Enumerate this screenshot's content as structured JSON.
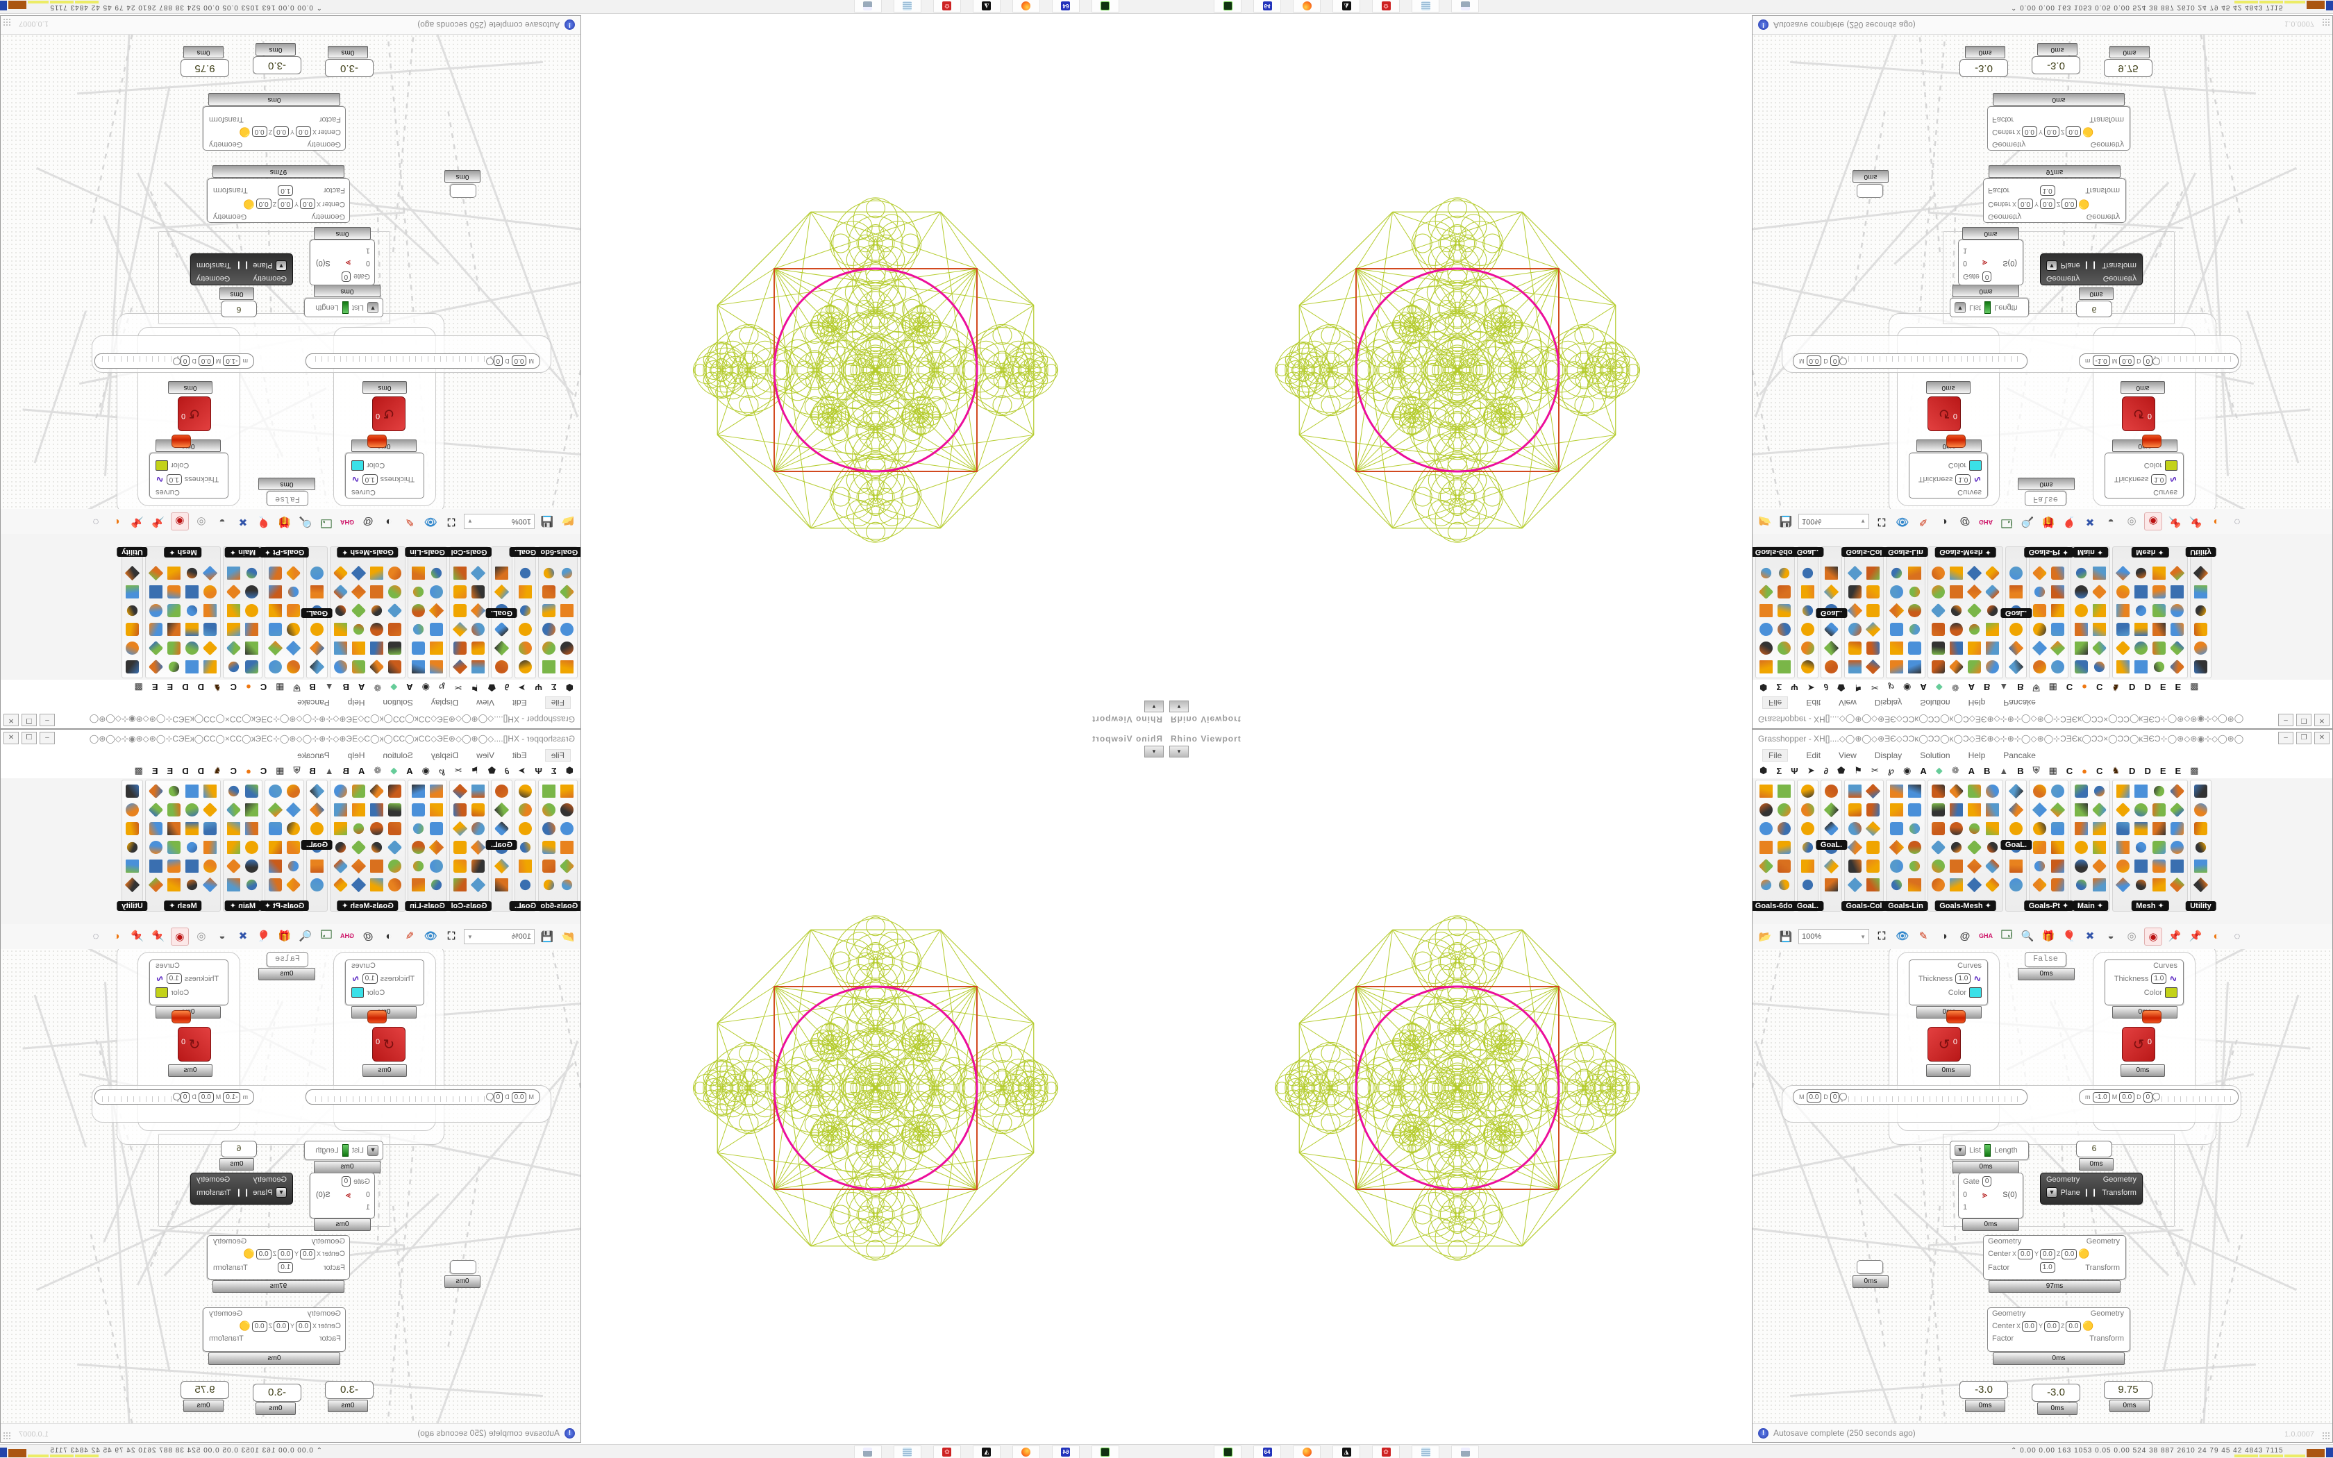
{
  "viewport": {
    "label": "Rhino Viewport",
    "drop_glyph": "▾"
  },
  "gh": {
    "title": "Grasshopper - XH[]....◇◯⊕◯◇⊛ƎЄ◇ƆƆĸ◯ƆƆ◯ĸ◯Ɔ◇ƎЄ⊕◇⊹⊕⊹◯◇⊛◯⊹ƆƎЄĸ◯ƆƆ×◯ƆƆ◯ĸƎЄƆ⊹◯⊛◇⊛◉⊹◇◯⊛◯⊹ƆƎЄ◯Ɔ...",
    "window_buttons": [
      "–",
      "❐",
      "✕"
    ],
    "menu": [
      "File",
      "Edit",
      "View",
      "Display",
      "Solution",
      "Help",
      "Pancake"
    ],
    "tabs": [
      {
        "g": "⬢",
        "c": "#222"
      },
      {
        "g": "Σ",
        "c": "#222"
      },
      {
        "g": "Ψ",
        "c": "#222"
      },
      {
        "g": "➤",
        "c": "#222"
      },
      {
        "g": "∂",
        "c": "#222"
      },
      {
        "g": "⬟",
        "c": "#222"
      },
      {
        "g": "⚑",
        "c": "#222"
      },
      {
        "g": "✂",
        "c": "#222"
      },
      {
        "g": "℘",
        "c": "#222"
      },
      {
        "g": "◉",
        "c": "#222"
      },
      {
        "g": "A",
        "c": "#111"
      },
      {
        "g": "◆",
        "c": "#66cc99"
      },
      {
        "g": "❁",
        "c": "#555"
      },
      {
        "g": "A",
        "c": "#111"
      },
      {
        "g": "B",
        "c": "#111"
      },
      {
        "g": "▲",
        "c": "#555"
      },
      {
        "g": "B",
        "c": "#111"
      },
      {
        "g": "⛨",
        "c": "#555"
      },
      {
        "g": "▦",
        "c": "#333"
      },
      {
        "g": "C",
        "c": "#111"
      },
      {
        "g": "●",
        "c": "#ee7711"
      },
      {
        "g": "C",
        "c": "#111"
      },
      {
        "g": "♞",
        "c": "#442200"
      },
      {
        "g": "D",
        "c": "#111"
      },
      {
        "g": "D",
        "c": "#111"
      },
      {
        "g": "E",
        "c": "#111"
      },
      {
        "g": "E",
        "c": "#111"
      },
      {
        "g": "▩",
        "c": "#333"
      }
    ],
    "ribbon_panels": [
      {
        "label": "Goals-6dof",
        "cols": 2,
        "arrow": false
      },
      {
        "label": "GoaL.",
        "cols": 1,
        "arrow": false
      },
      {
        "label": "",
        "cols": 1,
        "arrow": false,
        "float_label": "GoaL."
      },
      {
        "label": "Goals-Col",
        "cols": 2,
        "arrow": false
      },
      {
        "label": "Goals-Lin",
        "cols": 2,
        "arrow": false
      },
      {
        "label": "Goals-Mesh",
        "cols": 4,
        "arrow": true
      },
      {
        "label": "",
        "cols": 1,
        "arrow": false,
        "float_label": "GoaL."
      },
      {
        "label": "Goals-Pt",
        "cols": 2,
        "arrow": true
      },
      {
        "label": "Main",
        "cols": 2,
        "arrow": true
      },
      {
        "label": "Mesh",
        "cols": 4,
        "arrow": true
      },
      {
        "label": "Utility",
        "cols": 1,
        "arrow": false
      }
    ],
    "toolbar": {
      "zoom": "100%",
      "icons_left": [
        {
          "name": "open-file-icon",
          "g": "📂",
          "c": "#55aa33"
        },
        {
          "name": "save-file-icon",
          "g": "💾",
          "c": "#3355cc"
        }
      ],
      "icons_mid": [
        {
          "name": "frame-icon",
          "g": "⛶",
          "c": "#222"
        },
        {
          "name": "preview-eye-icon",
          "g": "👁",
          "c": "#3388cc"
        },
        {
          "name": "sketch-pen-icon",
          "g": "✎",
          "c": "#cc3311"
        },
        {
          "name": "gumball-icon",
          "g": "◑",
          "c": "#333"
        },
        {
          "name": "at-icon",
          "g": "@",
          "c": "#444"
        },
        {
          "name": "gha-icon",
          "g": "GHA",
          "c": "#cc1166"
        },
        {
          "name": "doc-icon",
          "g": "🗔",
          "c": "#447744"
        },
        {
          "name": "find-icon",
          "g": "🔍",
          "c": "#3366aa"
        },
        {
          "name": "box-question-icon",
          "g": "🎁",
          "c": "#ee5599"
        },
        {
          "name": "balloon-icon",
          "g": "🎈",
          "c": "#8877ee"
        },
        {
          "name": "ribbons-icon",
          "g": "✖",
          "c": "#3355aa"
        },
        {
          "name": "wire-dark-icon",
          "g": "◒",
          "c": "#555"
        },
        {
          "name": "wire-ghost-icon",
          "g": "◎",
          "c": "#999"
        }
      ],
      "icon_selected": {
        "name": "wire-red-icon",
        "g": "◉",
        "c": "#bb1111"
      },
      "icons_right": [
        {
          "name": "pin-teal-icon",
          "g": "📌",
          "c": "#119988"
        },
        {
          "name": "pin-green-icon",
          "g": "📌",
          "c": "#44aa22"
        },
        {
          "name": "sphere-orange-icon",
          "g": "◐",
          "c": "#ee7711"
        },
        {
          "name": "dashed-circle-icon",
          "g": "◌",
          "c": "#667"
        }
      ]
    },
    "nodes": {
      "preview1": {
        "r1": "Curves",
        "r2": "Thickness",
        "t": "1.0",
        "r3": "Color",
        "swatch": "#3ae0e8",
        "time": "0ms"
      },
      "preview2": {
        "r1": "Curves",
        "r2": "Thickness",
        "t": "1.0",
        "r3": "Color",
        "swatch": "#c3d219",
        "time": "0ms"
      },
      "toggle": {
        "label": "False",
        "time": "0ms"
      },
      "solver1": {
        "value": "0",
        "time": "0ms"
      },
      "solver2": {
        "value": "0",
        "time": "0ms"
      },
      "slider1": {
        "lm": "M",
        "vm": "0.0",
        "ld": "D",
        "vd": "0",
        "plus": "+1"
      },
      "slider2": {
        "ls": "m",
        "vs": "-1.0",
        "lm": "M",
        "vm": "0.0",
        "ld": "D",
        "vd": "0",
        "plus": "+1"
      },
      "listlen": {
        "in": "List",
        "out": "Length",
        "time": "0ms"
      },
      "panel6": {
        "value": "6",
        "time": "0ms"
      },
      "gate": {
        "in1": "Gate",
        "g": "0",
        "in2": "0",
        "in3": "1",
        "out": "S(0)",
        "time": "0ms"
      },
      "orient": {
        "in1": "Geometry",
        "in2": "Plane",
        "out1": "Geometry",
        "out2": "Transform"
      },
      "scale1": {
        "in1": "Geometry",
        "c": "Center",
        "x": "X",
        "xv": "0.0",
        "y": "Y",
        "yv": "0.0",
        "z": "Z",
        "zv": "0.0",
        "f": "Factor",
        "fv": "1.0",
        "out1": "Geometry",
        "out2": "Transform",
        "time": "97ms"
      },
      "scale2": {
        "in1": "Geometry",
        "c": "Center",
        "x": "X",
        "xv": "0.0",
        "y": "Y",
        "yv": "0.0",
        "z": "Z",
        "zv": "0.0",
        "f": "Factor",
        "out1": "Geometry",
        "out2": "Transform",
        "time": "0ms"
      },
      "mini": {
        "time": "0ms"
      },
      "pA": {
        "value": "-3.0",
        "time": "0ms"
      },
      "pB": {
        "value": "-3.0",
        "time": "0ms"
      },
      "pC": {
        "value": "9.75",
        "time": "0ms"
      }
    },
    "status": {
      "text": "Autosave complete (250 seconds ago)",
      "version": "1.0.0007"
    }
  },
  "geometry_colors": {
    "wire": "#b5cc2e",
    "circle": "#ec0e9b",
    "square": "#d2491f"
  },
  "taskbar": {
    "icons": [
      {
        "name": "drive-icon",
        "text": "",
        "bg": "#113311",
        "fg": "#66cc44"
      },
      {
        "name": "floppy64-icon",
        "text": "64",
        "bg": "#2233bb",
        "fg": "#ffffff"
      },
      {
        "name": "firefox-icon",
        "text": "",
        "bg": "#ff9922",
        "fg": "#cc3300"
      },
      {
        "name": "gimp-icon",
        "text": "",
        "bg": "#111111",
        "fg": "#ffffff"
      },
      {
        "name": "keepass-icon",
        "text": "",
        "bg": "#cc2222",
        "fg": "#ffaaaa"
      },
      {
        "name": "notepad-icon",
        "text": "",
        "bg": "#cfe4f2",
        "fg": "#7799bb"
      },
      {
        "name": "calculator-icon",
        "text": "",
        "bg": "#bcd4ea",
        "fg": "#5577aa"
      }
    ],
    "chevron": "⌃",
    "stats": "0.00 0.00  163  1053 0.05 0.00  524   38   887  2610   24    79    45    42   4843 7115",
    "blocks": [
      {
        "c": "#ecec66",
        "w": 34,
        "h": 4
      },
      {
        "c": "#ecec66",
        "w": 34,
        "h": 4
      },
      {
        "c": "#ecec66",
        "w": 30,
        "h": 4
      },
      {
        "c": "#aa5511",
        "w": 26,
        "h": 12
      },
      {
        "c": "#2244aa",
        "w": 26,
        "h": 14
      },
      {
        "c": "#995511",
        "w": 26,
        "h": 12
      },
      {
        "c": "#55cc44",
        "w": 18,
        "h": 3
      },
      {
        "c": "#881111",
        "w": 22,
        "h": 13
      }
    ]
  }
}
